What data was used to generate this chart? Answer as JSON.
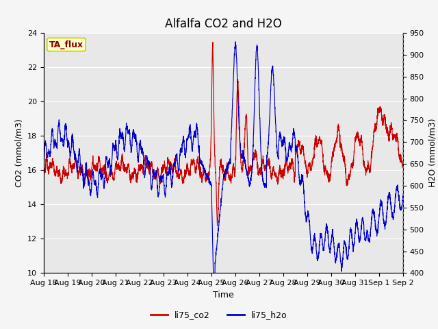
{
  "title": "Alfalfa CO2 and H2O",
  "xlabel": "Time",
  "ylabel_left": "CO2 (mmol/m3)",
  "ylabel_right": "H2O (mmol/m3)",
  "ylim_left": [
    10,
    24
  ],
  "ylim_right": [
    400,
    950
  ],
  "yticks_left": [
    10,
    12,
    14,
    16,
    18,
    20,
    22,
    24
  ],
  "yticks_right": [
    400,
    450,
    500,
    550,
    600,
    650,
    700,
    750,
    800,
    850,
    900,
    950
  ],
  "color_co2": "#cc0000",
  "color_h2o": "#0000cc",
  "fig_bg_color": "#f5f5f5",
  "plot_bg_color": "#e8e8e8",
  "grid_color": "#ffffff",
  "annotation_text": "TA_flux",
  "annotation_bg": "#ffffcc",
  "annotation_border": "#cccc00",
  "title_fontsize": 12,
  "axis_label_fontsize": 9,
  "tick_fontsize": 8,
  "legend_fontsize": 9,
  "x_start": 18.0,
  "x_end": 33.0,
  "x_tick_labels": [
    "Aug 18",
    "Aug 19",
    "Aug 20",
    "Aug 21",
    "Aug 22",
    "Aug 23",
    "Aug 24",
    "Aug 25",
    "Aug 26",
    "Aug 27",
    "Aug 28",
    "Aug 29",
    "Aug 30",
    "Aug 31",
    "Sep 1",
    "Sep 2"
  ],
  "x_tick_positions": [
    18,
    19,
    20,
    21,
    22,
    23,
    24,
    25,
    26,
    27,
    28,
    29,
    30,
    31,
    32,
    33
  ]
}
